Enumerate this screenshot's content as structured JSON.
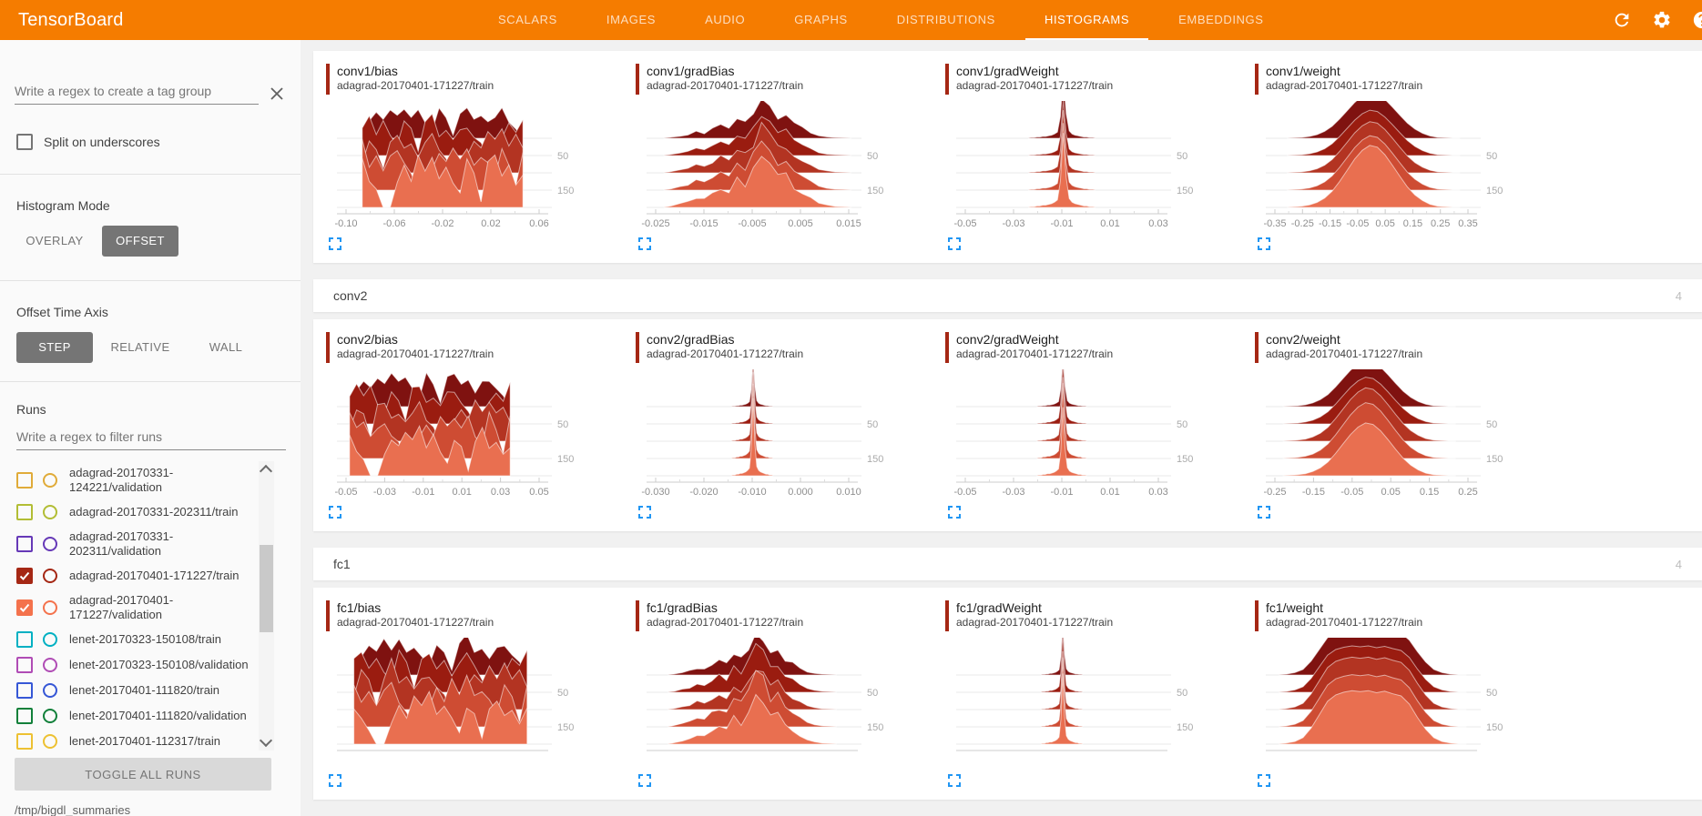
{
  "header": {
    "title": "TensorBoard",
    "tabs": [
      {
        "label": "SCALARS",
        "active": false
      },
      {
        "label": "IMAGES",
        "active": false
      },
      {
        "label": "AUDIO",
        "active": false
      },
      {
        "label": "GRAPHS",
        "active": false
      },
      {
        "label": "DISTRIBUTIONS",
        "active": false
      },
      {
        "label": "HISTOGRAMS",
        "active": true
      },
      {
        "label": "EMBEDDINGS",
        "active": false
      }
    ],
    "icons": [
      "refresh-icon",
      "settings-icon",
      "help-icon"
    ]
  },
  "sidebar": {
    "tag_regex_placeholder": "Write a regex to create a tag group",
    "split_label": "Split on underscores",
    "split_checked": false,
    "histogram_mode_label": "Histogram Mode",
    "histogram_mode_options": [
      "OVERLAY",
      "OFFSET"
    ],
    "histogram_mode_selected": "OFFSET",
    "offset_axis_label": "Offset Time Axis",
    "offset_axis_options": [
      "STEP",
      "RELATIVE",
      "WALL"
    ],
    "offset_axis_selected": "STEP",
    "runs_label": "Runs",
    "runs_filter_placeholder": "Write a regex to filter runs",
    "runs": [
      {
        "label": "adagrad-20170331-124221/validation",
        "color": "#e0ab39",
        "checked": false
      },
      {
        "label": "adagrad-20170331-202311/train",
        "color": "#b2bd34",
        "checked": false
      },
      {
        "label": "adagrad-20170331-202311/validation",
        "color": "#6639b7",
        "checked": false
      },
      {
        "label": "adagrad-20170401-171227/train",
        "color": "#a52714",
        "checked": true
      },
      {
        "label": "adagrad-20170401-171227/validation",
        "color": "#f4724c",
        "checked": true
      },
      {
        "label": "lenet-20170323-150108/train",
        "color": "#00b0c2",
        "checked": false
      },
      {
        "label": "lenet-20170323-150108/validation",
        "color": "#b04cb5",
        "checked": false
      },
      {
        "label": "lenet-20170401-111820/train",
        "color": "#3657d6",
        "checked": false
      },
      {
        "label": "lenet-20170401-111820/validation",
        "color": "#12803a",
        "checked": false
      },
      {
        "label": "lenet-20170401-112317/train",
        "color": "#edc132",
        "checked": false
      }
    ],
    "toggle_all": "TOGGLE ALL RUNS",
    "log_dir": "/tmp/bigdl_summaries"
  },
  "main": {
    "groups": [
      {
        "name": "",
        "count": "",
        "header_visible": false,
        "card_indices": [
          0,
          1,
          2,
          3
        ]
      },
      {
        "name": "conv2",
        "count": "4",
        "header_visible": true,
        "card_indices": [
          4,
          5,
          6,
          7
        ]
      },
      {
        "name": "fc1",
        "count": "4",
        "header_visible": true,
        "card_indices": [
          8,
          9,
          10,
          11
        ]
      }
    ]
  },
  "chart_data": {
    "type": "ridgeline_histogram",
    "histogram_mode": "OFFSET",
    "offset_time_axis": "STEP",
    "y_step_labels": [
      "50",
      "150"
    ],
    "ridge_colors": [
      "#7f1210",
      "#9a1c10",
      "#b33422",
      "#ce4c33",
      "#e96f50"
    ],
    "cards": [
      {
        "title": "conv1/bias",
        "run": "adagrad-20170401-171227/train",
        "shape": "noisy",
        "span": [
          0.12,
          0.88
        ],
        "x_ticks": [
          "-0.10",
          "-0.06",
          "-0.02",
          "0.02",
          "0.06"
        ]
      },
      {
        "title": "conv1/gradBias",
        "run": "adagrad-20170401-171227/train",
        "shape": "peaks",
        "span": [
          0.08,
          0.97
        ],
        "x_ticks": [
          "-0.025",
          "-0.015",
          "-0.005",
          "0.005",
          "0.015"
        ]
      },
      {
        "title": "conv1/gradWeight",
        "run": "adagrad-20170401-171227/train",
        "shape": "spike",
        "span": [
          0.34,
          0.66
        ],
        "x_ticks": [
          "-0.05",
          "-0.03",
          "-0.01",
          "0.01",
          "0.03"
        ]
      },
      {
        "title": "conv1/weight",
        "run": "adagrad-20170401-171227/train",
        "shape": "bell",
        "span": [
          0.1,
          0.92
        ],
        "x_ticks": [
          "-0.35",
          "-0.25",
          "-0.15",
          "-0.05",
          "0.05",
          "0.15",
          "0.25",
          "0.35"
        ]
      },
      {
        "title": "conv2/bias",
        "run": "adagrad-20170401-171227/train",
        "shape": "noisy",
        "span": [
          0.06,
          0.82
        ],
        "x_ticks": [
          "-0.05",
          "-0.03",
          "-0.01",
          "0.01",
          "0.03",
          "0.05"
        ]
      },
      {
        "title": "conv2/gradBias",
        "run": "adagrad-20170401-171227/train",
        "shape": "spike",
        "span": [
          0.4,
          0.6
        ],
        "x_ticks": [
          "-0.030",
          "-0.020",
          "-0.010",
          "0.000",
          "0.010"
        ]
      },
      {
        "title": "conv2/gradWeight",
        "run": "adagrad-20170401-171227/train",
        "shape": "spike",
        "span": [
          0.38,
          0.62
        ],
        "x_ticks": [
          "-0.05",
          "-0.03",
          "-0.01",
          "0.01",
          "0.03"
        ]
      },
      {
        "title": "conv2/weight",
        "run": "adagrad-20170401-171227/train",
        "shape": "bell",
        "span": [
          0.08,
          0.9
        ],
        "x_ticks": [
          "-0.25",
          "-0.15",
          "-0.05",
          "0.05",
          "0.15",
          "0.25"
        ]
      },
      {
        "title": "fc1/bias",
        "run": "adagrad-20170401-171227/train",
        "shape": "noisy",
        "span": [
          0.08,
          0.9
        ],
        "x_ticks": []
      },
      {
        "title": "fc1/gradBias",
        "run": "adagrad-20170401-171227/train",
        "shape": "peaks",
        "span": [
          0.1,
          0.9
        ],
        "x_ticks": []
      },
      {
        "title": "fc1/gradWeight",
        "run": "adagrad-20170401-171227/train",
        "shape": "spike",
        "span": [
          0.4,
          0.6
        ],
        "x_ticks": []
      },
      {
        "title": "fc1/weight",
        "run": "adagrad-20170401-171227/train",
        "shape": "widebell",
        "span": [
          0.06,
          0.95
        ],
        "x_ticks": []
      }
    ],
    "profiles": {
      "noisy": [
        0,
        0.45,
        0.72,
        0.55,
        0.85,
        0.68,
        0.92,
        0.6,
        0.78,
        0.5,
        0.25,
        0.82,
        0.6,
        0.1,
        0.75,
        0.95,
        0.55,
        0.7,
        0.42,
        0.66,
        0.8,
        0.52,
        0.3,
        0
      ],
      "peaks": [
        0,
        0.03,
        0.06,
        0.1,
        0.18,
        0.14,
        0.25,
        0.35,
        0.28,
        0.5,
        0.42,
        0.65,
        1.0,
        0.85,
        0.55,
        0.62,
        0.38,
        0.28,
        0.16,
        0.08,
        0.04,
        0.02,
        0.01,
        0
      ],
      "spike": [
        0,
        0.01,
        0.01,
        0.02,
        0.02,
        0.03,
        0.03,
        0.04,
        0.05,
        0.07,
        0.1,
        0.35,
        1.0,
        0.4,
        0.12,
        0.07,
        0.05,
        0.04,
        0.03,
        0.02,
        0.02,
        0.01,
        0.01,
        0
      ],
      "bell": [
        0,
        0.01,
        0.02,
        0.04,
        0.08,
        0.15,
        0.26,
        0.42,
        0.6,
        0.78,
        0.92,
        1.0,
        0.97,
        0.85,
        0.68,
        0.5,
        0.33,
        0.2,
        0.11,
        0.05,
        0.02,
        0.01,
        0,
        0
      ],
      "widebell": [
        0,
        0.02,
        0.05,
        0.12,
        0.3,
        0.55,
        0.8,
        0.92,
        0.97,
        1.0,
        0.98,
        1.0,
        0.96,
        0.99,
        0.94,
        0.9,
        0.75,
        0.5,
        0.28,
        0.12,
        0.05,
        0.02,
        0,
        0
      ]
    },
    "colors": {
      "appbar": "#f57c00",
      "card_bar": "#a52714",
      "expand_icon": "#2196f3"
    }
  }
}
